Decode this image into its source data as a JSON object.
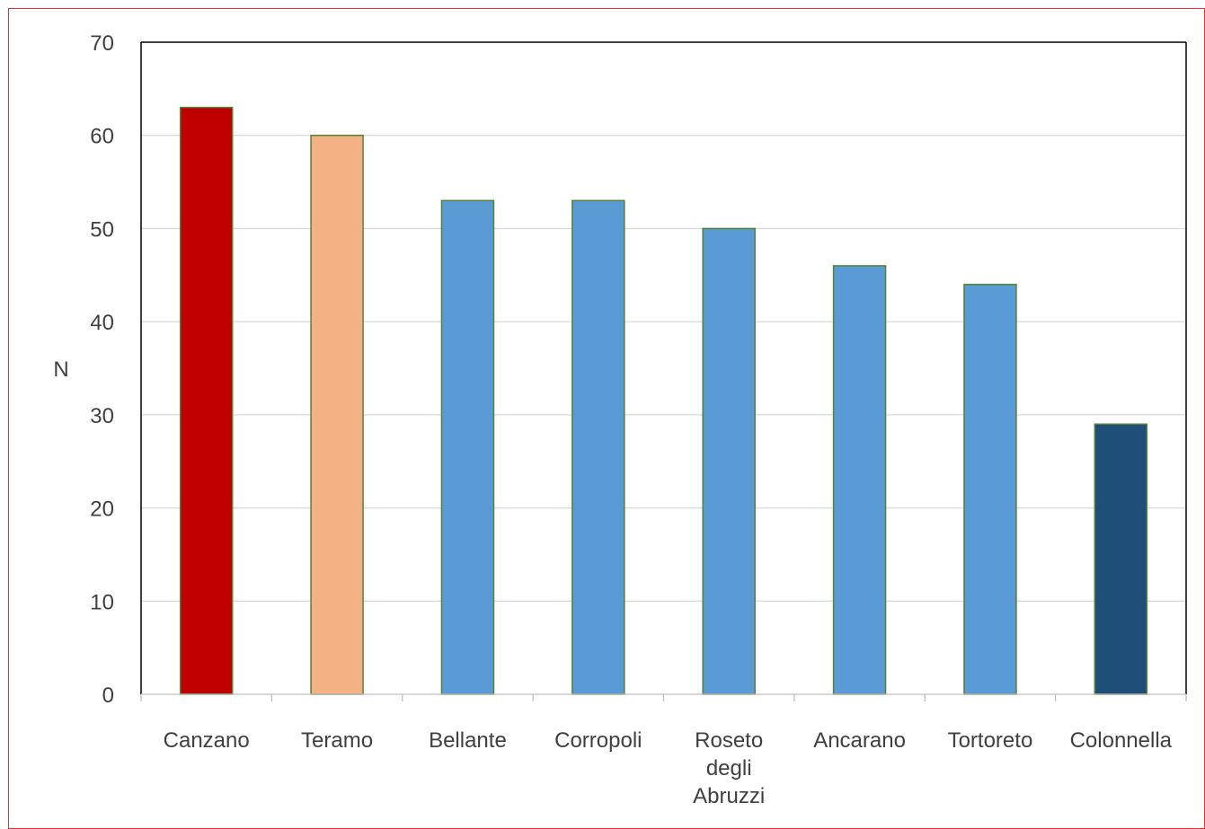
{
  "chart_data": {
    "type": "bar",
    "title": "",
    "xlabel": "",
    "ylabel": "N",
    "ylim": [
      0,
      70
    ],
    "yticks": [
      0,
      10,
      20,
      30,
      40,
      50,
      60,
      70
    ],
    "grid": true,
    "categories": [
      [
        "Canzano"
      ],
      [
        "Teramo"
      ],
      [
        "Bellante"
      ],
      [
        "Corropoli"
      ],
      [
        "Roseto",
        "degli",
        "Abruzzi"
      ],
      [
        "Ancarano"
      ],
      [
        "Tortoreto"
      ],
      [
        "Colonnella"
      ]
    ],
    "values": [
      63,
      60,
      53,
      53,
      50,
      46,
      44,
      29
    ],
    "bar_colors": [
      "#c00000",
      "#f4b183",
      "#5b9bd5",
      "#5b9bd5",
      "#5b9bd5",
      "#5b9bd5",
      "#5b9bd5",
      "#1f4e79"
    ],
    "bar_edge_color": "#548235"
  }
}
